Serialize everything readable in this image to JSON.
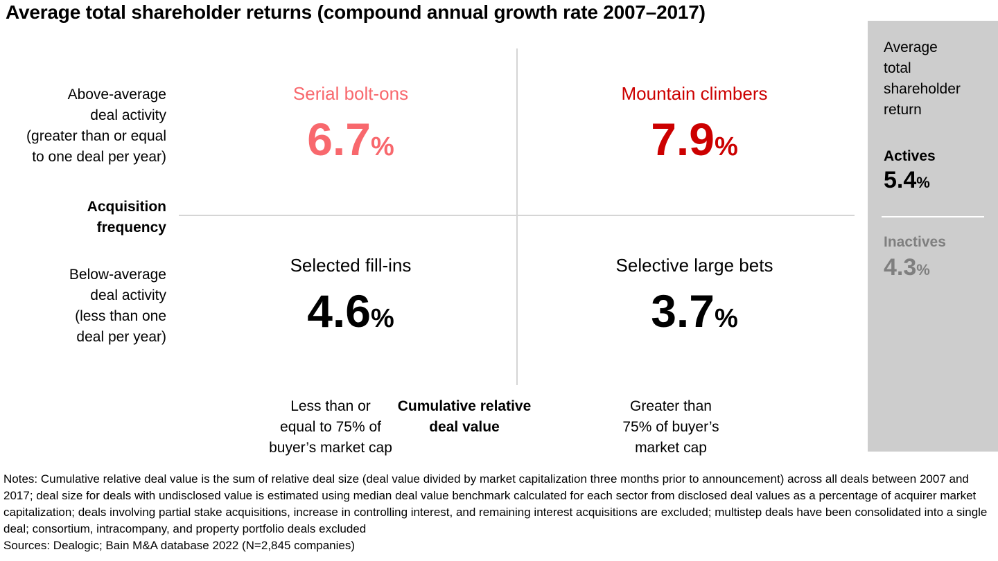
{
  "title": "Average total shareholder returns (compound annual growth rate 2007–2017)",
  "colors": {
    "serial_bolt_ons": "#f8686d",
    "mountain_climbers": "#cc0000",
    "lower_quadrants": "#000000",
    "inactives_text": "#7f7f7f",
    "sidebar_background": "#cdcdcd",
    "grid_line": "#d5d5d5"
  },
  "matrix": {
    "row_axis": {
      "title": "Acquisition\nfrequency",
      "top_label": "Above-average\ndeal activity\n(greater than or equal\nto one deal per year)",
      "bottom_label": "Below-average\ndeal activity\n(less than one\ndeal per year)"
    },
    "col_axis": {
      "title": "Cumulative relative\ndeal value",
      "left_label": "Less than or\nequal to 75% of\nbuyer’s market cap",
      "right_label": "Greater than\n75% of buyer’s\nmarket cap"
    },
    "quadrants": [
      {
        "id": "top-left",
        "label": "Serial bolt-ons",
        "value": "6.7",
        "unit": "%"
      },
      {
        "id": "top-right",
        "label": "Mountain climbers",
        "value": "7.9",
        "unit": "%"
      },
      {
        "id": "bottom-left",
        "label": "Selected fill-ins",
        "value": "4.6",
        "unit": "%"
      },
      {
        "id": "bottom-right",
        "label": "Selective large bets",
        "value": "3.7",
        "unit": "%"
      }
    ]
  },
  "sidebar": {
    "title": "Average\ntotal\nshareholder\nreturn",
    "actives": {
      "label": "Actives",
      "value": "5.4",
      "unit": "%"
    },
    "inactives": {
      "label": "Inactives",
      "value": "4.3",
      "unit": "%"
    }
  },
  "footer": {
    "notes": "Notes: Cumulative relative deal value is the sum of relative deal size (deal value divided by market capitalization three months prior to announcement) across all deals between 2007 and 2017; deal size for deals with undisclosed value is estimated using median deal value benchmark calculated for each sector from disclosed deal values as a percentage of acquirer market capitalization; deals involving partial stake acquisitions, increase in controlling interest, and remaining interest acquisitions are excluded; multistep deals have been consolidated into a single deal; consortium, intracompany, and property portfolio deals excluded",
    "sources": "Sources: Dealogic; Bain M&A database 2022 (N=2,845 companies)"
  },
  "chart_data": {
    "type": "heatmap",
    "title": "Average total shareholder returns (compound annual growth rate 2007–2017)",
    "unit": "%",
    "x_axis": {
      "label": "Cumulative relative deal value",
      "categories": [
        "Less than or equal to 75% of buyer’s market cap",
        "Greater than 75% of buyer’s market cap"
      ]
    },
    "y_axis": {
      "label": "Acquisition frequency",
      "categories": [
        "Above-average deal activity (greater than or equal to one deal per year)",
        "Below-average deal activity (less than one deal per year)"
      ]
    },
    "cells": [
      {
        "row": "Above-average deal activity",
        "col": "Less than or equal to 75% of buyer’s market cap",
        "label": "Serial bolt-ons",
        "value": 6.7
      },
      {
        "row": "Above-average deal activity",
        "col": "Greater than 75% of buyer’s market cap",
        "label": "Mountain climbers",
        "value": 7.9
      },
      {
        "row": "Below-average deal activity",
        "col": "Less than or equal to 75% of buyer’s market cap",
        "label": "Selected fill-ins",
        "value": 4.6
      },
      {
        "row": "Below-average deal activity",
        "col": "Greater than 75% of buyer’s market cap",
        "label": "Selective large bets",
        "value": 3.7
      }
    ],
    "reference_values": [
      {
        "label": "Actives",
        "value": 5.4
      },
      {
        "label": "Inactives",
        "value": 4.3
      }
    ]
  }
}
